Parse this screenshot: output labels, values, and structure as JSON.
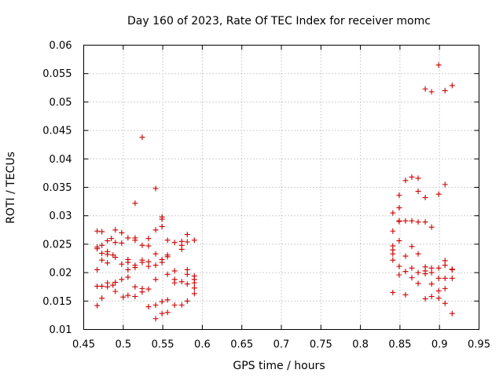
{
  "chart_data": {
    "type": "scatter",
    "title": "Day 160 of 2023, Rate Of TEC Index for receiver momc",
    "xlabel": "GPS time / hours",
    "ylabel": "ROTI / TECUs",
    "xlim": [
      0.45,
      0.95
    ],
    "ylim": [
      0.01,
      0.06
    ],
    "grid": true,
    "marker": "+",
    "color": "#cc0000",
    "xticks": [
      "0.45",
      "0.5",
      "0.55",
      "0.6",
      "0.65",
      "0.7",
      "0.75",
      "0.8",
      "0.85",
      "0.9",
      "0.95"
    ],
    "yticks": [
      "0.01",
      "0.015",
      "0.02",
      "0.025",
      "0.03",
      "0.035",
      "0.04",
      "0.045",
      "0.05",
      "0.055",
      "0.06"
    ],
    "series": [
      {
        "name": "ROTI",
        "points": [
          [
            0.467,
            0.0273
          ],
          [
            0.467,
            0.0242
          ],
          [
            0.467,
            0.0245
          ],
          [
            0.467,
            0.0205
          ],
          [
            0.467,
            0.0176
          ],
          [
            0.467,
            0.0142
          ],
          [
            0.473,
            0.0272
          ],
          [
            0.473,
            0.0248
          ],
          [
            0.473,
            0.0234
          ],
          [
            0.473,
            0.0222
          ],
          [
            0.473,
            0.0176
          ],
          [
            0.473,
            0.0155
          ],
          [
            0.48,
            0.0256
          ],
          [
            0.48,
            0.0237
          ],
          [
            0.48,
            0.0232
          ],
          [
            0.48,
            0.0217
          ],
          [
            0.48,
            0.0182
          ],
          [
            0.48,
            0.0175
          ],
          [
            0.485,
            0.026
          ],
          [
            0.487,
            0.0231
          ],
          [
            0.487,
            0.0178
          ],
          [
            0.49,
            0.0275
          ],
          [
            0.49,
            0.0253
          ],
          [
            0.49,
            0.0227
          ],
          [
            0.49,
            0.0183
          ],
          [
            0.49,
            0.0167
          ],
          [
            0.498,
            0.027
          ],
          [
            0.498,
            0.0252
          ],
          [
            0.498,
            0.0215
          ],
          [
            0.498,
            0.0188
          ],
          [
            0.5,
            0.0157
          ],
          [
            0.506,
            0.0261
          ],
          [
            0.506,
            0.0223
          ],
          [
            0.506,
            0.0218
          ],
          [
            0.506,
            0.0205
          ],
          [
            0.506,
            0.0192
          ],
          [
            0.506,
            0.016
          ],
          [
            0.515,
            0.0322
          ],
          [
            0.515,
            0.0261
          ],
          [
            0.515,
            0.0257
          ],
          [
            0.515,
            0.0213
          ],
          [
            0.515,
            0.0209
          ],
          [
            0.515,
            0.0175
          ],
          [
            0.515,
            0.0158
          ],
          [
            0.524,
            0.0438
          ],
          [
            0.524,
            0.0248
          ],
          [
            0.524,
            0.0222
          ],
          [
            0.524,
            0.0218
          ],
          [
            0.524,
            0.0172
          ],
          [
            0.524,
            0.0166
          ],
          [
            0.532,
            0.026
          ],
          [
            0.532,
            0.0247
          ],
          [
            0.532,
            0.0219
          ],
          [
            0.532,
            0.0211
          ],
          [
            0.532,
            0.0171
          ],
          [
            0.532,
            0.014
          ],
          [
            0.541,
            0.0348
          ],
          [
            0.541,
            0.0275
          ],
          [
            0.541,
            0.0233
          ],
          [
            0.541,
            0.0213
          ],
          [
            0.541,
            0.0188
          ],
          [
            0.541,
            0.0143
          ],
          [
            0.541,
            0.0119
          ],
          [
            0.549,
            0.0298
          ],
          [
            0.549,
            0.0294
          ],
          [
            0.549,
            0.0281
          ],
          [
            0.549,
            0.0223
          ],
          [
            0.549,
            0.0218
          ],
          [
            0.549,
            0.0149
          ],
          [
            0.549,
            0.0128
          ],
          [
            0.556,
            0.0257
          ],
          [
            0.556,
            0.0231
          ],
          [
            0.556,
            0.0228
          ],
          [
            0.556,
            0.0197
          ],
          [
            0.556,
            0.0152
          ],
          [
            0.556,
            0.013
          ],
          [
            0.565,
            0.0253
          ],
          [
            0.565,
            0.0203
          ],
          [
            0.565,
            0.0188
          ],
          [
            0.565,
            0.0182
          ],
          [
            0.565,
            0.0143
          ],
          [
            0.574,
            0.0255
          ],
          [
            0.574,
            0.0248
          ],
          [
            0.574,
            0.0241
          ],
          [
            0.574,
            0.0184
          ],
          [
            0.574,
            0.0143
          ],
          [
            0.581,
            0.0267
          ],
          [
            0.581,
            0.0254
          ],
          [
            0.581,
            0.0205
          ],
          [
            0.581,
            0.0197
          ],
          [
            0.581,
            0.018
          ],
          [
            0.581,
            0.015
          ],
          [
            0.59,
            0.0257
          ],
          [
            0.59,
            0.0194
          ],
          [
            0.59,
            0.0188
          ],
          [
            0.59,
            0.0182
          ],
          [
            0.59,
            0.0173
          ],
          [
            0.59,
            0.0163
          ],
          [
            0.841,
            0.0305
          ],
          [
            0.841,
            0.0273
          ],
          [
            0.841,
            0.0247
          ],
          [
            0.841,
            0.024
          ],
          [
            0.841,
            0.0233
          ],
          [
            0.841,
            0.0222
          ],
          [
            0.841,
            0.0165
          ],
          [
            0.849,
            0.0336
          ],
          [
            0.849,
            0.0314
          ],
          [
            0.849,
            0.0291
          ],
          [
            0.849,
            0.029
          ],
          [
            0.849,
            0.0256
          ],
          [
            0.849,
            0.0211
          ],
          [
            0.849,
            0.0196
          ],
          [
            0.857,
            0.0362
          ],
          [
            0.857,
            0.0291
          ],
          [
            0.857,
            0.0229
          ],
          [
            0.857,
            0.0202
          ],
          [
            0.857,
            0.0161
          ],
          [
            0.865,
            0.0368
          ],
          [
            0.865,
            0.0291
          ],
          [
            0.865,
            0.0246
          ],
          [
            0.865,
            0.0208
          ],
          [
            0.865,
            0.0191
          ],
          [
            0.873,
            0.0366
          ],
          [
            0.873,
            0.0343
          ],
          [
            0.873,
            0.0289
          ],
          [
            0.873,
            0.0233
          ],
          [
            0.873,
            0.02
          ],
          [
            0.873,
            0.0181
          ],
          [
            0.882,
            0.0523
          ],
          [
            0.882,
            0.0332
          ],
          [
            0.882,
            0.0289
          ],
          [
            0.882,
            0.021
          ],
          [
            0.882,
            0.0203
          ],
          [
            0.882,
            0.0198
          ],
          [
            0.882,
            0.0154
          ],
          [
            0.89,
            0.0518
          ],
          [
            0.89,
            0.028
          ],
          [
            0.89,
            0.0208
          ],
          [
            0.89,
            0.02
          ],
          [
            0.89,
            0.018
          ],
          [
            0.89,
            0.0158
          ],
          [
            0.899,
            0.0565
          ],
          [
            0.899,
            0.0338
          ],
          [
            0.899,
            0.0208
          ],
          [
            0.899,
            0.019
          ],
          [
            0.899,
            0.0168
          ],
          [
            0.899,
            0.0155
          ],
          [
            0.907,
            0.052
          ],
          [
            0.907,
            0.0355
          ],
          [
            0.907,
            0.0221
          ],
          [
            0.907,
            0.0213
          ],
          [
            0.907,
            0.019
          ],
          [
            0.907,
            0.0172
          ],
          [
            0.907,
            0.0146
          ],
          [
            0.916,
            0.0529
          ],
          [
            0.916,
            0.0206
          ],
          [
            0.916,
            0.0205
          ],
          [
            0.916,
            0.019
          ],
          [
            0.916,
            0.0128
          ]
        ]
      }
    ]
  }
}
